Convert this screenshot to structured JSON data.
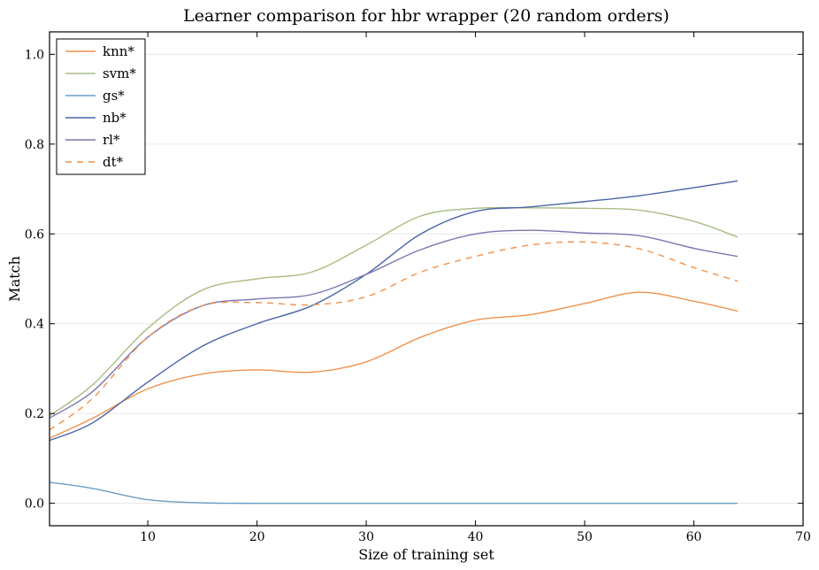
{
  "chart_data": {
    "type": "line",
    "title": "Learner comparison for hbr wrapper (20 random orders)",
    "xlabel": "Size of training set",
    "ylabel": "Match",
    "xlim": [
      1,
      70
    ],
    "ylim": [
      -0.05,
      1.05
    ],
    "xticks": [
      "10",
      "20",
      "30",
      "40",
      "50",
      "60",
      "70"
    ],
    "yticks": [
      "0.0",
      "0.2",
      "0.4",
      "0.6",
      "0.8",
      "1.0"
    ],
    "grid": "horizontal",
    "legend_position": "top-left",
    "series": [
      {
        "name": "knn*",
        "color": "#f0924c",
        "dash": "solid",
        "x": [
          1,
          5,
          10,
          15,
          20,
          25,
          30,
          35,
          40,
          45,
          50,
          55,
          60,
          64
        ],
        "y": [
          0.145,
          0.19,
          0.255,
          0.288,
          0.297,
          0.292,
          0.315,
          0.37,
          0.408,
          0.42,
          0.445,
          0.47,
          0.45,
          0.428
        ]
      },
      {
        "name": "svm*",
        "color": "#a8bd82",
        "dash": "solid",
        "x": [
          1,
          5,
          10,
          15,
          20,
          25,
          30,
          35,
          40,
          45,
          50,
          55,
          60,
          64
        ],
        "y": [
          0.195,
          0.265,
          0.39,
          0.475,
          0.5,
          0.515,
          0.575,
          0.64,
          0.657,
          0.658,
          0.657,
          0.653,
          0.628,
          0.593
        ]
      },
      {
        "name": "gs*",
        "color": "#6a9ec4",
        "dash": "solid",
        "x": [
          1,
          5,
          10,
          15,
          20,
          25,
          30,
          35,
          40,
          45,
          50,
          55,
          60,
          64
        ],
        "y": [
          0.047,
          0.033,
          0.008,
          0.001,
          0.0,
          0.0,
          0.0,
          0.0,
          0.0,
          0.0,
          0.0,
          0.0,
          0.0,
          0.0
        ]
      },
      {
        "name": "nb*",
        "color": "#4a64a8",
        "dash": "solid",
        "x": [
          1,
          5,
          10,
          15,
          20,
          25,
          30,
          35,
          40,
          45,
          50,
          55,
          60,
          64
        ],
        "y": [
          0.14,
          0.18,
          0.27,
          0.35,
          0.4,
          0.44,
          0.51,
          0.6,
          0.65,
          0.66,
          0.672,
          0.685,
          0.703,
          0.718
        ]
      },
      {
        "name": "rl*",
        "color": "#7b77b2",
        "dash": "solid",
        "x": [
          1,
          5,
          10,
          15,
          20,
          25,
          30,
          35,
          40,
          45,
          50,
          55,
          60,
          64
        ],
        "y": [
          0.19,
          0.25,
          0.37,
          0.44,
          0.455,
          0.465,
          0.51,
          0.565,
          0.6,
          0.608,
          0.602,
          0.596,
          0.568,
          0.55
        ]
      },
      {
        "name": "dt*",
        "color": "#f0924c",
        "dash": "dashed",
        "x": [
          1,
          5,
          10,
          15,
          20,
          25,
          30,
          35,
          40,
          45,
          50,
          55,
          60,
          64
        ],
        "y": [
          0.163,
          0.235,
          0.37,
          0.44,
          0.447,
          0.442,
          0.46,
          0.515,
          0.55,
          0.575,
          0.582,
          0.567,
          0.525,
          0.495
        ]
      }
    ]
  }
}
